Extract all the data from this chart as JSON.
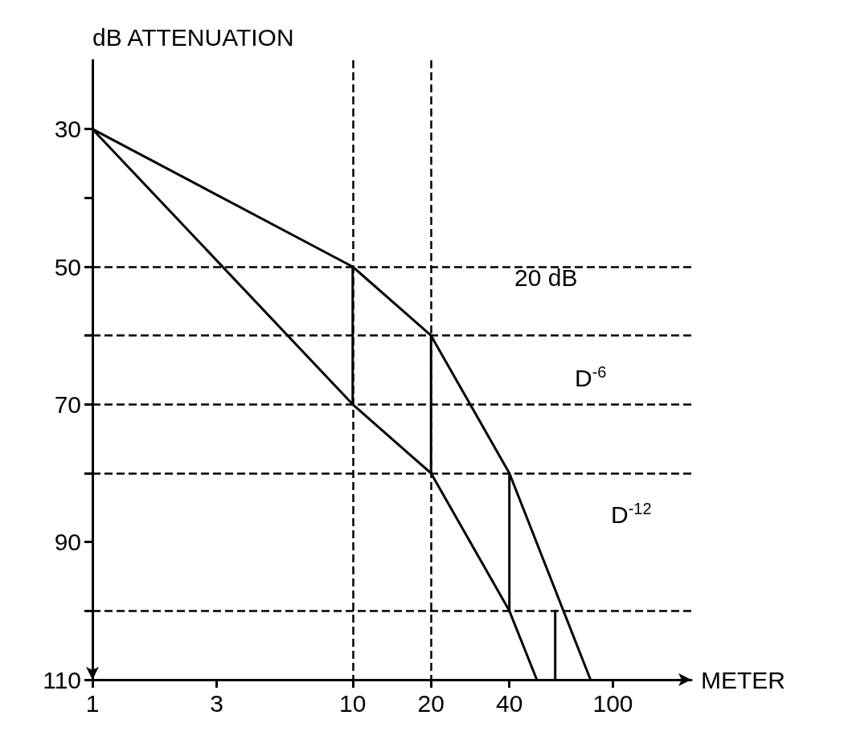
{
  "chart_data": {
    "type": "line",
    "xlabel": "METER",
    "ylabel": "dB ATTENUATION",
    "log": "x",
    "xlim": [
      1,
      200
    ],
    "xticks": [
      1,
      3,
      10,
      20,
      40,
      100
    ],
    "ylim": [
      110,
      20
    ],
    "yticks": [
      30,
      {
        "value": 40,
        "label": null
      },
      50,
      {
        "value": 60,
        "label": null
      },
      70,
      {
        "value": 80,
        "label": null
      },
      90,
      {
        "value": 100,
        "label": null
      },
      110
    ],
    "series": [
      {
        "color": "#000000",
        "x": [
          1,
          10,
          20,
          40,
          82
        ],
        "values": [
          30,
          50,
          60,
          80,
          110
        ]
      },
      {
        "color": "#000000",
        "x": [
          1,
          10,
          20,
          40,
          51
        ],
        "values": [
          30,
          70,
          80,
          100,
          110
        ]
      },
      {
        "color": "#000000",
        "x": [
          10,
          10
        ],
        "values": [
          50,
          70
        ]
      },
      {
        "color": "#000000",
        "x": [
          20,
          20
        ],
        "values": [
          60,
          80
        ]
      },
      {
        "color": "#000000",
        "x": [
          40,
          40
        ],
        "values": [
          80,
          100
        ]
      },
      {
        "color": "#000000",
        "x": [
          60,
          60
        ],
        "values": [
          100,
          110
        ]
      }
    ],
    "ref_lines": [
      {
        "axis": "y",
        "value": 50,
        "color": "#000000",
        "line_style": "dashed"
      },
      {
        "axis": "y",
        "value": 60,
        "color": "#000000",
        "line_style": "dashed"
      },
      {
        "axis": "y",
        "value": 70,
        "color": "#000000",
        "line_style": "dashed"
      },
      {
        "axis": "y",
        "value": 80,
        "color": "#000000",
        "line_style": "dashed"
      },
      {
        "axis": "y",
        "value": 100,
        "color": "#000000",
        "line_style": "dashed"
      },
      {
        "axis": "x",
        "value": 10,
        "color": "#000000",
        "line_style": "dashed"
      },
      {
        "axis": "x",
        "value": 20,
        "color": "#000000",
        "line_style": "dashed"
      }
    ],
    "annotations": [
      "20 dB",
      "D$^{-6}$",
      "D$^{-12}$"
    ],
    "line_style": "solid",
    "marker": "none",
    "grid": false
  }
}
